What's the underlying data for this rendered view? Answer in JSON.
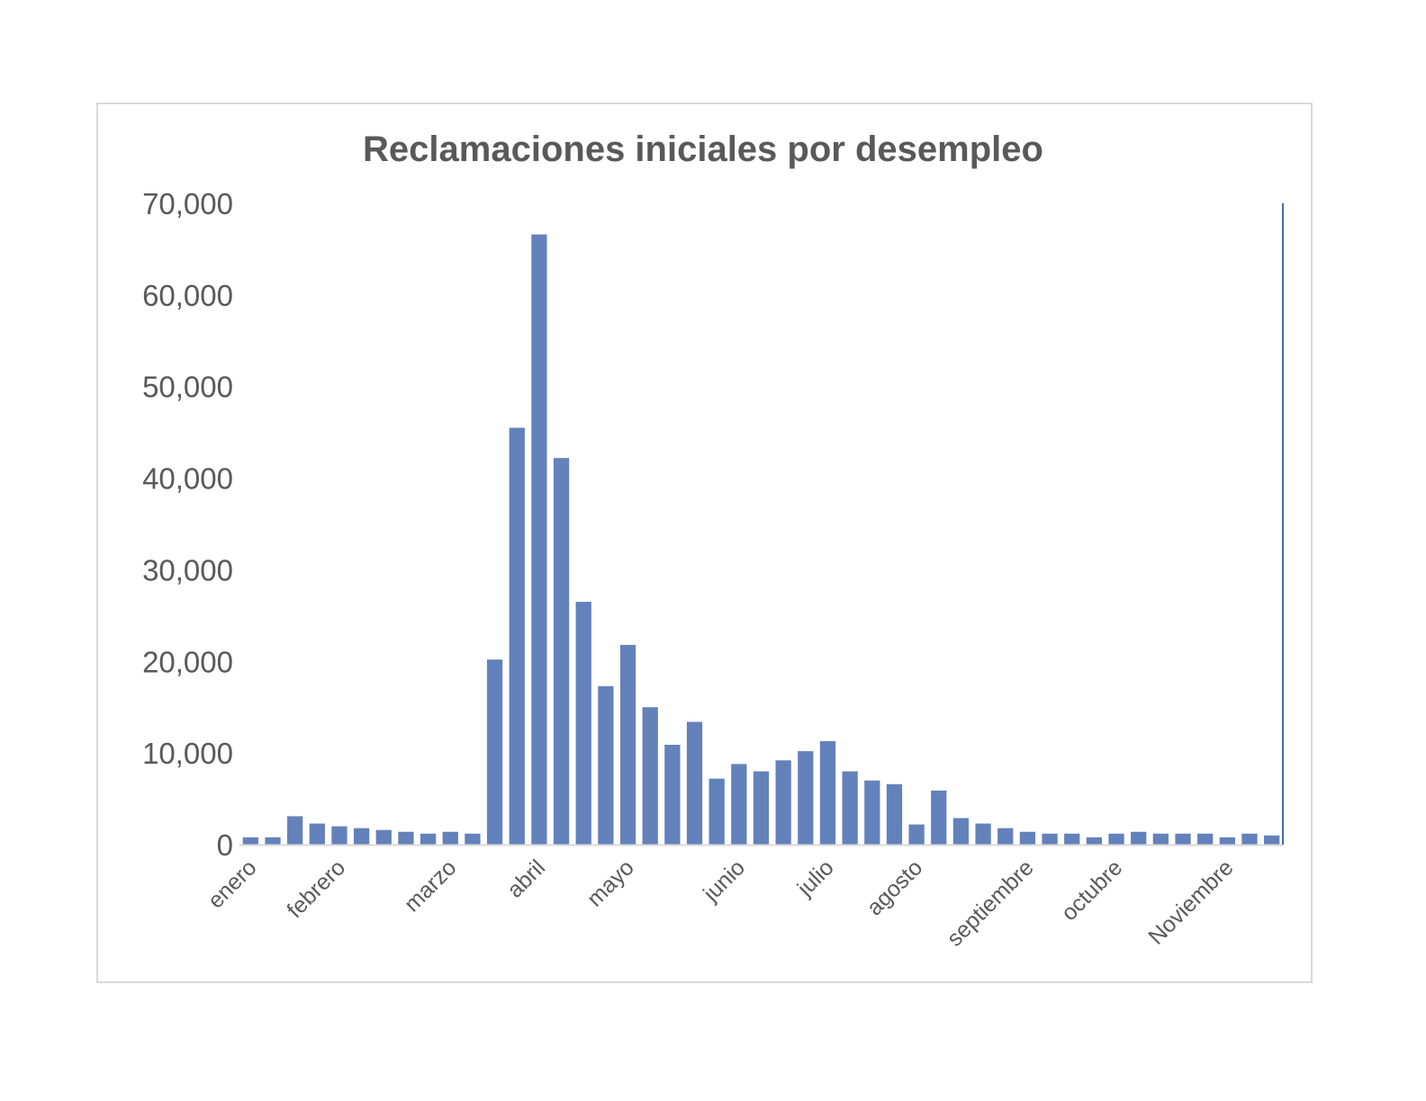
{
  "chart_data": {
    "type": "bar",
    "title": "Reclamaciones iniciales por desempleo",
    "xlabel": "",
    "ylabel": "",
    "ylim": [
      0,
      70000
    ],
    "yticks": [
      "0",
      "10,000",
      "20,000",
      "30,000",
      "40,000",
      "50,000",
      "60,000",
      "70,000"
    ],
    "ytick_values": [
      0,
      10000,
      20000,
      30000,
      40000,
      50000,
      60000,
      70000
    ],
    "grid": false,
    "legend": "none",
    "month_labels": [
      {
        "label": "enero",
        "index": 0
      },
      {
        "label": "febrero",
        "index": 4
      },
      {
        "label": "marzo",
        "index": 9
      },
      {
        "label": "abril",
        "index": 13
      },
      {
        "label": "mayo",
        "index": 17
      },
      {
        "label": "junio",
        "index": 22
      },
      {
        "label": "julio",
        "index": 26
      },
      {
        "label": "agosto",
        "index": 30
      },
      {
        "label": "septiembre",
        "index": 35
      },
      {
        "label": "octubre",
        "index": 39
      },
      {
        "label": "Noviembre",
        "index": 44
      }
    ],
    "values": [
      800,
      800,
      3100,
      2300,
      2000,
      1800,
      1600,
      1400,
      1200,
      1400,
      1200,
      20200,
      45500,
      66600,
      42200,
      26500,
      17300,
      21800,
      15000,
      10900,
      13400,
      7200,
      8800,
      8000,
      9200,
      10200,
      11300,
      8000,
      7000,
      6600,
      2200,
      5900,
      2900,
      2300,
      1800,
      1400,
      1200,
      1200,
      800,
      1200,
      1400,
      1200,
      1200,
      1200,
      800,
      1200,
      1000
    ],
    "colors": {
      "bar": "#6381bb",
      "axis": "#d9d9d9",
      "text": "#595959",
      "right_line": "#4a6ab0"
    }
  }
}
